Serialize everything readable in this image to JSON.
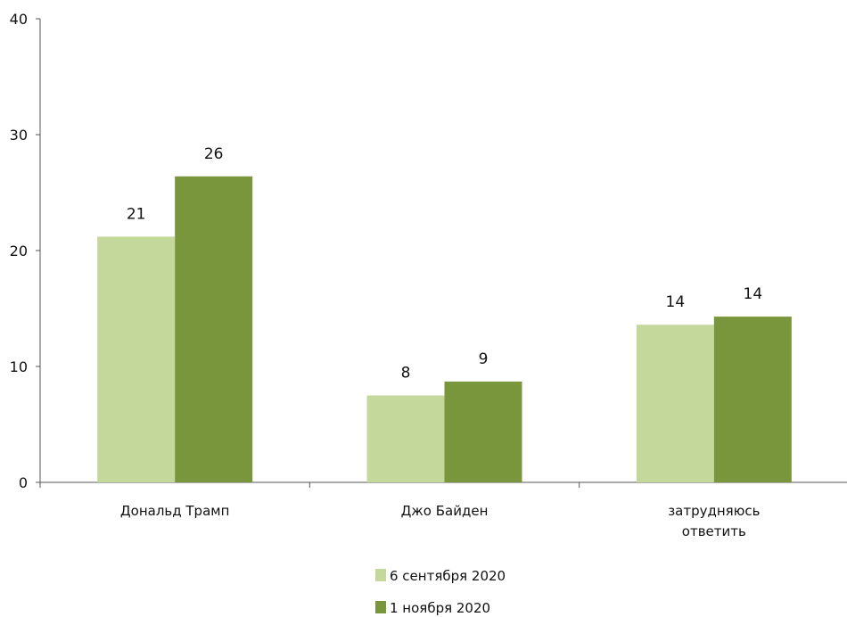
{
  "chart_data": {
    "type": "bar",
    "categories": [
      [
        "Дональд Трамп"
      ],
      [
        "Джо Байден"
      ],
      [
        "затрудняюсь",
        "ответить"
      ]
    ],
    "series": [
      {
        "name": "6 сентября 2020",
        "values": [
          21.2,
          7.5,
          13.6
        ],
        "labels": [
          "21",
          "8",
          "14"
        ],
        "color": "#c4d89c"
      },
      {
        "name": "1 ноября 2020",
        "values": [
          26.4,
          8.7,
          14.3
        ],
        "labels": [
          "26",
          "9",
          "14"
        ],
        "color": "#7a963c"
      }
    ],
    "ylim": [
      0,
      40
    ],
    "yticks": [
      0,
      10,
      20,
      30,
      40
    ],
    "grid": false,
    "legend_position": "bottom-center"
  }
}
